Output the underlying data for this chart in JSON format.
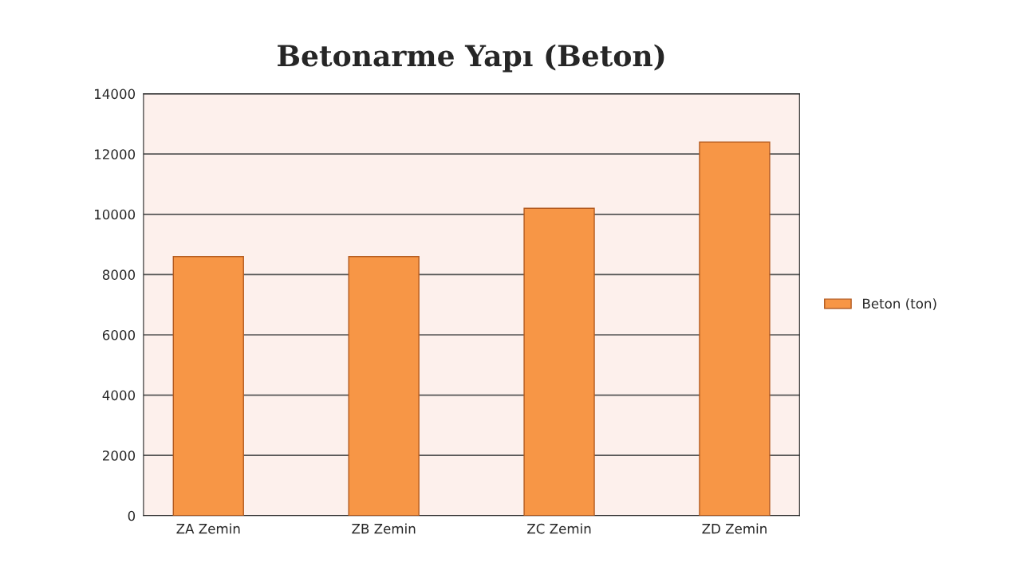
{
  "chart_data": {
    "type": "bar",
    "title": "Betonarme Yapı (Beton)",
    "categories": [
      "ZA Zemin",
      "ZB Zemin",
      "ZC Zemin",
      "ZD Zemin"
    ],
    "series": [
      {
        "name": "Beton (ton)",
        "color": "#f79646",
        "values": [
          8600,
          8600,
          10200,
          12400
        ]
      }
    ],
    "ylim": [
      0,
      14000
    ],
    "yticks": [
      0,
      2000,
      4000,
      6000,
      8000,
      10000,
      12000,
      14000
    ],
    "grid": "y",
    "legend": "right"
  }
}
